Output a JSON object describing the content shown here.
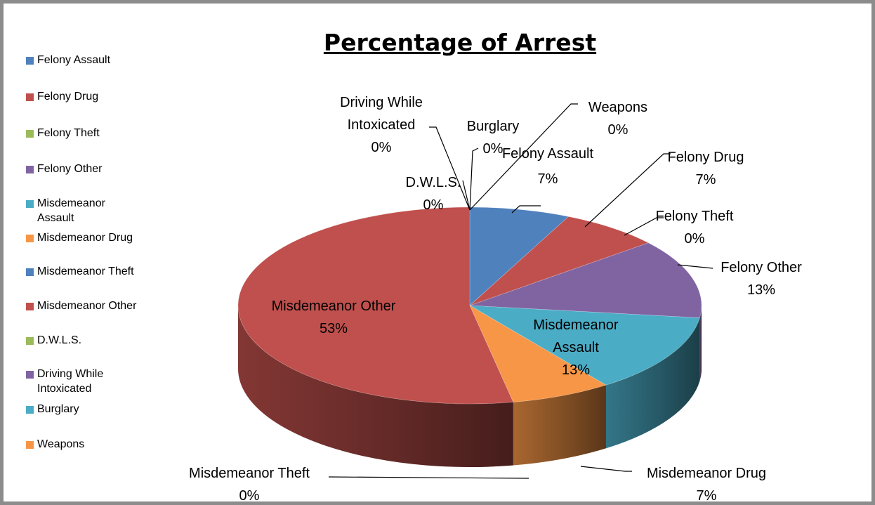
{
  "chart_data": {
    "type": "pie",
    "title": "Percentage of Arrest",
    "legend_position": "left",
    "categories": [
      "Felony Assault",
      "Felony Drug",
      "Felony Theft",
      "Felony Other",
      "Misdemeanor Assault",
      "Misdemeanor Drug",
      "Misdemeanor Theft",
      "Misdemeanor Other",
      "D.W.L.S.",
      "Driving While Intoxicated",
      "Burglary",
      "Weapons"
    ],
    "values": [
      7,
      7,
      0,
      13,
      13,
      7,
      0,
      53,
      0,
      0,
      0,
      0
    ],
    "value_labels": [
      "7%",
      "7%",
      "0%",
      "13%",
      "13%",
      "7%",
      "0%",
      "53%",
      "0%",
      "0%",
      "0%",
      "0%"
    ],
    "colors": [
      "#4f81bd",
      "#c0504d",
      "#9bbb59",
      "#8064a2",
      "#4bacc6",
      "#f79646",
      "#4f81bd",
      "#c0504d",
      "#9bbb59",
      "#8064a2",
      "#4bacc6",
      "#f79646"
    ]
  }
}
